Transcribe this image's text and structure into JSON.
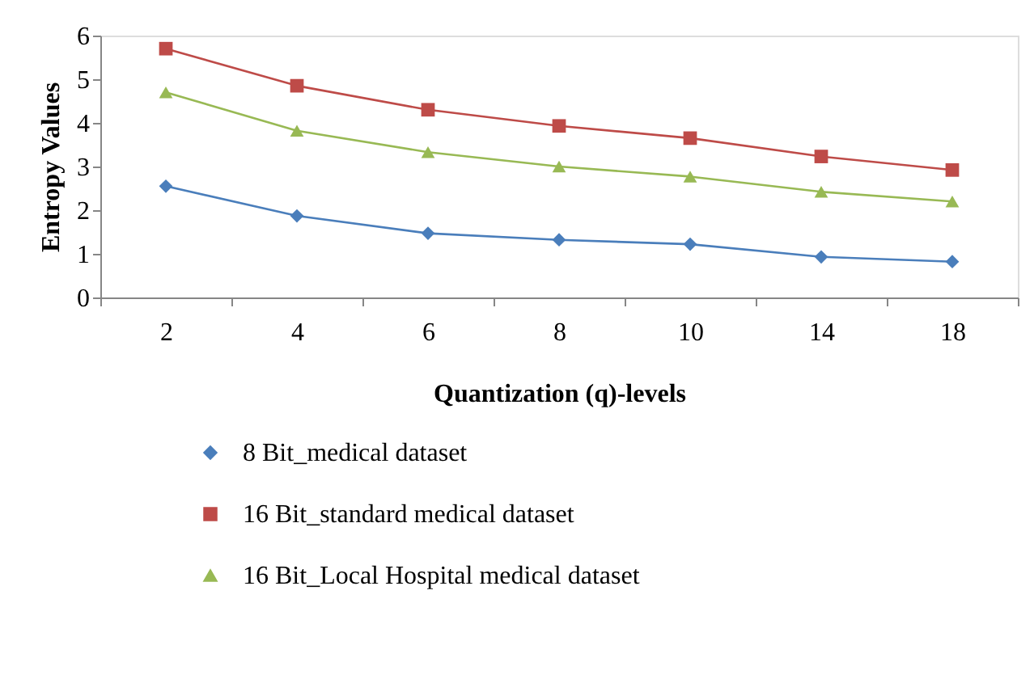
{
  "chart_data": {
    "type": "line",
    "xlabel": "Quantization (q)-levels",
    "ylabel": "Entropy Values",
    "categories": [
      "2",
      "4",
      "6",
      "8",
      "10",
      "14",
      "18"
    ],
    "series": [
      {
        "name": "8 Bit_medical dataset",
        "color": "#4a7ebb",
        "marker": "diamond",
        "values": [
          2.55,
          1.87,
          1.47,
          1.32,
          1.22,
          0.93,
          0.82
        ]
      },
      {
        "name": "16 Bit_standard medical dataset",
        "color": "#be4b48",
        "marker": "square",
        "values": [
          5.7,
          4.85,
          4.3,
          3.93,
          3.65,
          3.23,
          2.92
        ]
      },
      {
        "name": "16 Bit_Local Hospital medical dataset",
        "color": "#98b954",
        "marker": "triangle",
        "values": [
          4.7,
          3.82,
          3.33,
          3.0,
          2.77,
          2.42,
          2.2
        ]
      }
    ],
    "ylim": [
      0,
      6
    ],
    "yticks": [
      0,
      1,
      2,
      3,
      4,
      5,
      6
    ],
    "grid": false,
    "legend": "bottom",
    "line_style": "solid"
  }
}
